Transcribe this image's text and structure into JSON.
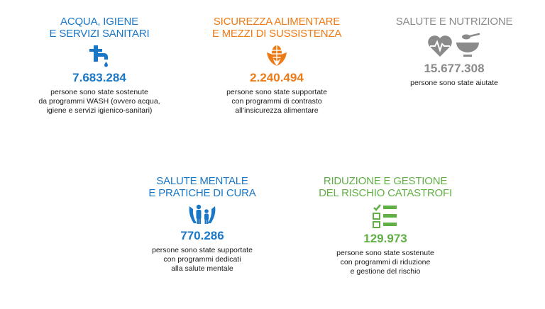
{
  "colors": {
    "blue": "#1a77c5",
    "orange": "#ee7a16",
    "gray": "#8a8a8a",
    "green": "#61b046"
  },
  "cards": [
    {
      "title_lines": [
        "ACQUA, IGIENE",
        "E SERVIZI SANITARI"
      ],
      "icon": "water-tap-icon",
      "number": "7.683.284",
      "desc_lines": [
        "persone sono state sostenute",
        "da programmi WASH (ovvero acqua,",
        "igiene e servizi igienico-sanitari)"
      ]
    },
    {
      "title_lines": [
        "SICUREZZA ALIMENTARE",
        "E MEZZI DI SUSSISTENZA"
      ],
      "icon": "corn-icon",
      "number": "2.240.494",
      "desc_lines": [
        "persone sono state supportate",
        "con programmi di contrasto",
        "all’insicurezza alimentare"
      ]
    },
    {
      "title_lines": [
        "SALUTE E NUTRIZIONE"
      ],
      "icon": "heart-and-bowl-icon",
      "number": "15.677.308",
      "desc_lines": [
        "persone sono state aiutate"
      ]
    },
    {
      "title_lines": [
        "SALUTE MENTALE",
        "E PRATICHE DI CURA"
      ],
      "icon": "family-hands-icon",
      "number": "770.286",
      "desc_lines": [
        "persone sono state supportate",
        "con programmi dedicati",
        "alla salute mentale"
      ]
    },
    {
      "title_lines": [
        "RIDUZIONE E GESTIONE",
        "DEL RISCHIO CATASTROFI"
      ],
      "icon": "checklist-icon",
      "number": "129.973",
      "desc_lines": [
        "persone sono state sostenute",
        "con programmi di riduzione",
        "e gestione del rischio"
      ]
    }
  ]
}
